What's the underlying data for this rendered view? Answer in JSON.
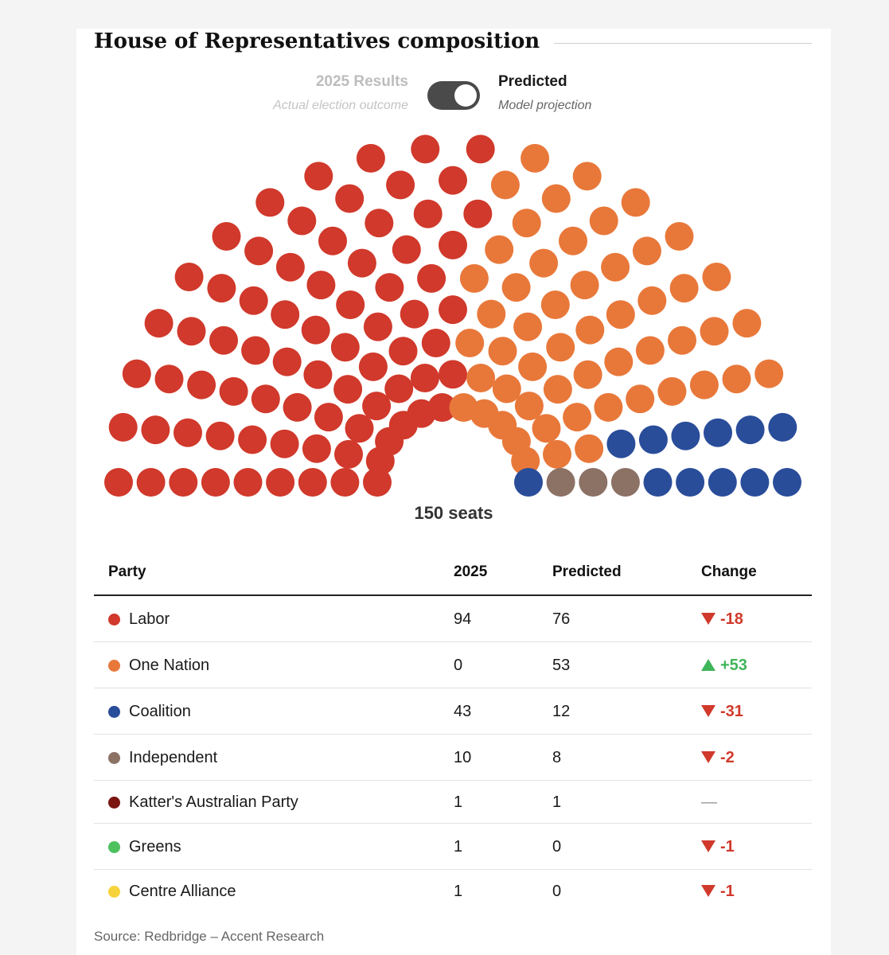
{
  "title": "House of Representatives composition",
  "toggle": {
    "left_label": "2025 Results",
    "left_sub": "Actual election outcome",
    "right_label": "Predicted",
    "right_sub": "Model projection",
    "state": "Predicted"
  },
  "seat_total_label": "150 seats",
  "table": {
    "headers": {
      "party": "Party",
      "y2025": "2025",
      "predicted": "Predicted",
      "change": "Change"
    },
    "rows": [
      {
        "party": "Labor",
        "color": "#d0392b",
        "y2025": "94",
        "predicted": "76",
        "change": "-18",
        "direction": "down"
      },
      {
        "party": "One Nation",
        "color": "#e8783a",
        "y2025": "0",
        "predicted": "53",
        "change": "+53",
        "direction": "up"
      },
      {
        "party": "Coalition",
        "color": "#2a4d9a",
        "y2025": "43",
        "predicted": "12",
        "change": "-31",
        "direction": "down"
      },
      {
        "party": "Independent",
        "color": "#8c7165",
        "y2025": "10",
        "predicted": "8",
        "change": "-2",
        "direction": "down"
      },
      {
        "party": "Katter's Australian Party",
        "color": "#7b1510",
        "y2025": "1",
        "predicted": "1",
        "change": "—",
        "direction": "none"
      },
      {
        "party": "Greens",
        "color": "#4cc15e",
        "y2025": "1",
        "predicted": "0",
        "change": "-1",
        "direction": "down"
      },
      {
        "party": "Centre Alliance",
        "color": "#f7d33b",
        "y2025": "1",
        "predicted": "0",
        "change": "-1",
        "direction": "down"
      }
    ]
  },
  "source": "Source: Redbridge – Accent Research",
  "colors": {
    "up": "#3fb55a",
    "down": "#d0392b",
    "neutral": "#999999"
  },
  "chart_data": {
    "type": "hemicycle",
    "total_seats": 150,
    "series": [
      {
        "name": "Labor",
        "values": [
          76
        ],
        "color": "#d0392b"
      },
      {
        "name": "One Nation",
        "values": [
          53
        ],
        "color": "#e8783a"
      },
      {
        "name": "Coalition",
        "values": [
          12
        ],
        "color": "#2a4d9a"
      },
      {
        "name": "Independent",
        "values": [
          8
        ],
        "color": "#8c7165"
      },
      {
        "name": "Katter's Australian Party",
        "values": [
          1
        ],
        "color": "#7b1510"
      }
    ]
  }
}
